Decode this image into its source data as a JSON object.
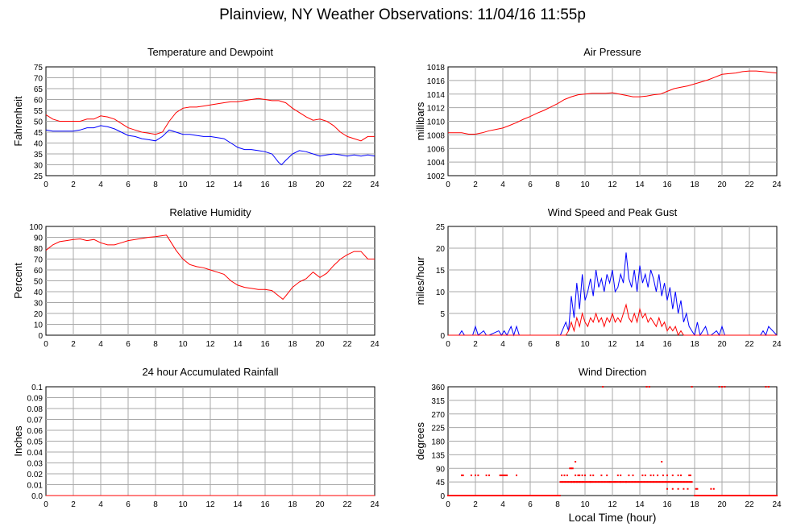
{
  "page": {
    "title": "Plainview, NY Weather Observations: 11/04/16 11:55p",
    "x_axis_title": "Local Time (hour)"
  },
  "chart_data": [
    {
      "id": "temp",
      "type": "line",
      "title": "Temperature and Dewpoint",
      "xlabel": "",
      "ylabel": "Fahrenheit",
      "xlim": [
        0,
        24
      ],
      "ylim": [
        25,
        75
      ],
      "xticks": [
        0,
        2,
        4,
        6,
        8,
        10,
        12,
        14,
        16,
        18,
        20,
        22,
        24
      ],
      "yticks": [
        25,
        30,
        35,
        40,
        45,
        50,
        55,
        60,
        65,
        70,
        75
      ],
      "ytick_labels": [
        "25",
        "30",
        "35",
        "40",
        "45",
        "50",
        "55",
        "60",
        "65",
        "70",
        "75"
      ],
      "grid": true,
      "series": [
        {
          "color": "#ff0000",
          "x": [
            0,
            0.5,
            1,
            1.5,
            2,
            2.5,
            3,
            3.5,
            4,
            4.5,
            5,
            5.5,
            6,
            6.5,
            7,
            7.5,
            8,
            8.5,
            9,
            9.5,
            10,
            10.5,
            11,
            11.5,
            12,
            12.5,
            13,
            13.5,
            14,
            14.5,
            15,
            15.5,
            16,
            16.5,
            17,
            17.5,
            18,
            18.5,
            19,
            19.5,
            20,
            20.5,
            21,
            21.5,
            22,
            22.5,
            23,
            23.5,
            24
          ],
          "y": [
            53,
            51,
            50,
            50,
            50,
            50,
            51,
            51,
            52.5,
            52,
            51,
            49,
            47,
            46,
            45,
            44.5,
            44,
            45,
            50,
            54,
            56,
            56.5,
            56.5,
            57,
            57.5,
            58,
            58.5,
            59,
            59,
            59.5,
            60,
            60.5,
            60,
            59.5,
            59.5,
            58.5,
            56,
            54,
            52,
            50.5,
            51,
            50,
            48,
            45,
            43,
            42,
            41,
            43,
            43
          ]
        },
        {
          "color": "#0000ff",
          "x": [
            0,
            0.5,
            1,
            1.5,
            2,
            2.5,
            3,
            3.5,
            4,
            4.5,
            5,
            5.5,
            6,
            6.5,
            7,
            7.5,
            8,
            8.5,
            9,
            9.5,
            10,
            10.5,
            11,
            11.5,
            12,
            12.5,
            13,
            13.5,
            14,
            14.5,
            15,
            15.5,
            16,
            16.5,
            17,
            17.2,
            17.5,
            18,
            18.5,
            19,
            19.5,
            20,
            20.5,
            21,
            21.5,
            22,
            22.5,
            23,
            23.5,
            24
          ],
          "y": [
            46,
            45.5,
            45.5,
            45.5,
            45.5,
            46,
            47,
            47,
            48,
            47.5,
            46.5,
            45,
            43.5,
            43,
            42,
            41.5,
            41,
            43,
            46,
            45,
            44,
            44,
            43.5,
            43,
            43,
            42.5,
            42,
            40,
            38,
            37,
            37,
            36.5,
            36,
            35,
            31,
            30,
            32,
            35,
            36.5,
            36,
            35,
            34,
            34.5,
            35,
            34.5,
            34,
            34.5,
            34,
            34.5,
            34
          ]
        }
      ]
    },
    {
      "id": "pressure",
      "type": "line",
      "title": "Air Pressure",
      "xlabel": "",
      "ylabel": "millibars",
      "xlim": [
        0,
        24
      ],
      "ylim": [
        1002,
        1018
      ],
      "xticks": [
        0,
        2,
        4,
        6,
        8,
        10,
        12,
        14,
        16,
        18,
        20,
        22,
        24
      ],
      "yticks": [
        1002,
        1004,
        1006,
        1008,
        1010,
        1012,
        1014,
        1016,
        1018
      ],
      "ytick_labels": [
        "1002",
        "1004",
        "1006",
        "1008",
        "1010",
        "1012",
        "1014",
        "1016",
        "1018"
      ],
      "grid": true,
      "series": [
        {
          "color": "#ff0000",
          "x": [
            0,
            0.5,
            1,
            1.5,
            2,
            2.5,
            3,
            3.5,
            4,
            4.5,
            5,
            5.5,
            6,
            6.5,
            7,
            7.5,
            8,
            8.5,
            9,
            9.5,
            10,
            10.5,
            11,
            11.5,
            12,
            12.5,
            13,
            13.5,
            14,
            14.5,
            15,
            15.5,
            16,
            16.5,
            17,
            17.5,
            18,
            18.5,
            19,
            19.5,
            20,
            20.5,
            21,
            21.5,
            22,
            22.5,
            23,
            23.5,
            24
          ],
          "y": [
            1008.3,
            1008.3,
            1008.3,
            1008.1,
            1008.1,
            1008.3,
            1008.6,
            1008.8,
            1009.0,
            1009.4,
            1009.8,
            1010.3,
            1010.7,
            1011.2,
            1011.6,
            1012.1,
            1012.6,
            1013.2,
            1013.6,
            1013.9,
            1014.0,
            1014.1,
            1014.1,
            1014.1,
            1014.2,
            1014.0,
            1013.8,
            1013.6,
            1013.6,
            1013.7,
            1013.9,
            1014.0,
            1014.4,
            1014.8,
            1015.0,
            1015.2,
            1015.5,
            1015.8,
            1016.1,
            1016.5,
            1016.9,
            1017.0,
            1017.1,
            1017.3,
            1017.4,
            1017.4,
            1017.3,
            1017.2,
            1017.1
          ]
        }
      ]
    },
    {
      "id": "humidity",
      "type": "line",
      "title": "Relative Humidity",
      "xlabel": "",
      "ylabel": "Percent",
      "xlim": [
        0,
        24
      ],
      "ylim": [
        0,
        100
      ],
      "xticks": [
        0,
        2,
        4,
        6,
        8,
        10,
        12,
        14,
        16,
        18,
        20,
        22,
        24
      ],
      "yticks": [
        0,
        10,
        20,
        30,
        40,
        50,
        60,
        70,
        80,
        90,
        100
      ],
      "ytick_labels": [
        "0",
        "10",
        "20",
        "30",
        "40",
        "50",
        "60",
        "70",
        "80",
        "90",
        "100"
      ],
      "grid": true,
      "series": [
        {
          "color": "#ff0000",
          "x": [
            0,
            0.5,
            1,
            1.5,
            2,
            2.5,
            3,
            3.5,
            4,
            4.5,
            5,
            5.5,
            6,
            6.5,
            7,
            7.5,
            8,
            8.5,
            8.8,
            9,
            9.5,
            10,
            10.5,
            11,
            11.5,
            12,
            12.5,
            13,
            13.5,
            14,
            14.5,
            15,
            15.5,
            16,
            16.5,
            17,
            17.3,
            17.5,
            18,
            18.5,
            19,
            19.5,
            20,
            20.5,
            21,
            21.5,
            22,
            22.5,
            23,
            23.5,
            24
          ],
          "y": [
            78,
            83,
            86,
            87,
            88,
            88.5,
            87,
            88,
            85,
            83,
            83,
            85,
            87,
            88,
            89,
            90,
            90.5,
            91.5,
            92,
            88,
            78,
            70,
            65,
            63,
            62,
            60,
            58,
            56,
            50,
            46,
            44,
            43,
            42,
            42,
            41,
            36,
            33,
            36,
            44,
            49,
            52,
            58,
            53,
            57,
            64,
            70,
            74,
            77,
            77,
            70,
            70
          ]
        }
      ]
    },
    {
      "id": "wind",
      "type": "line",
      "title": "Wind Speed and Peak Gust",
      "xlabel": "",
      "ylabel": "miles/hour",
      "xlim": [
        0,
        24
      ],
      "ylim": [
        0,
        25
      ],
      "xticks": [
        0,
        2,
        4,
        6,
        8,
        10,
        12,
        14,
        16,
        18,
        20,
        22,
        24
      ],
      "yticks": [
        0,
        5,
        10,
        15,
        20,
        25
      ],
      "ytick_labels": [
        "0",
        "5",
        "10",
        "15",
        "20",
        "25"
      ],
      "grid": true,
      "series": [
        {
          "color": "#0000ff",
          "x": [
            0,
            0.8,
            1,
            1.2,
            1.8,
            2,
            2.2,
            2.6,
            2.8,
            3,
            3.7,
            3.9,
            4.1,
            4.3,
            4.6,
            4.8,
            5.0,
            5.2,
            8.2,
            8.6,
            8.8,
            9.0,
            9.2,
            9.4,
            9.6,
            9.8,
            10.0,
            10.2,
            10.4,
            10.6,
            10.8,
            11.0,
            11.2,
            11.4,
            11.6,
            11.8,
            12.0,
            12.2,
            12.4,
            12.6,
            12.8,
            13.0,
            13.2,
            13.4,
            13.6,
            13.8,
            14.0,
            14.2,
            14.4,
            14.6,
            14.8,
            15.0,
            15.2,
            15.4,
            15.6,
            15.8,
            16.0,
            16.2,
            16.4,
            16.6,
            16.8,
            17.0,
            17.2,
            17.4,
            17.6,
            17.8,
            18.0,
            18.2,
            18.4,
            18.8,
            19.0,
            19.2,
            19.6,
            19.8,
            20.0,
            20.2,
            22.8,
            23.0,
            23.2,
            23.4,
            24
          ],
          "y": [
            0,
            0,
            1,
            0,
            0,
            2,
            0,
            1,
            0,
            0,
            1,
            0,
            1,
            0,
            2,
            0,
            2,
            0,
            0,
            3,
            1,
            9,
            4,
            12,
            6,
            14,
            8,
            10,
            13,
            9,
            15,
            11,
            13,
            10,
            14,
            12,
            15,
            10,
            11,
            14,
            12,
            19,
            13,
            11,
            15,
            10,
            16,
            12,
            14,
            11,
            15,
            13,
            10,
            14,
            9,
            12,
            8,
            11,
            6,
            10,
            5,
            8,
            3,
            5,
            2,
            1,
            0,
            3,
            0,
            2,
            0,
            0,
            1,
            0,
            2,
            0,
            0,
            1,
            0,
            2,
            0
          ]
        },
        {
          "color": "#ff0000",
          "x": [
            0,
            8.6,
            8.8,
            9.0,
            9.2,
            9.4,
            9.6,
            9.8,
            10.0,
            10.2,
            10.4,
            10.6,
            10.8,
            11.0,
            11.2,
            11.4,
            11.6,
            11.8,
            12.0,
            12.2,
            12.4,
            12.6,
            12.8,
            13.0,
            13.2,
            13.4,
            13.6,
            13.8,
            14.0,
            14.2,
            14.4,
            14.6,
            14.8,
            15.0,
            15.2,
            15.4,
            15.6,
            15.8,
            16.0,
            16.2,
            16.4,
            16.6,
            16.8,
            17.0,
            17.2,
            17.4,
            24
          ],
          "y": [
            0,
            0,
            1,
            3,
            1,
            4,
            2,
            5,
            3,
            2,
            4,
            3,
            5,
            3,
            4,
            2,
            4,
            3,
            5,
            3,
            4,
            3,
            5,
            7,
            4,
            3,
            5,
            3,
            6,
            4,
            5,
            3,
            4,
            3,
            2,
            4,
            2,
            3,
            1,
            2,
            1,
            2,
            0,
            1,
            0,
            0,
            0
          ]
        }
      ]
    },
    {
      "id": "rain",
      "type": "line",
      "title": "24 hour Accumulated Rainfall",
      "xlabel": "",
      "ylabel": "Inches",
      "xlim": [
        0,
        24
      ],
      "ylim": [
        0,
        0.1
      ],
      "xticks": [
        0,
        2,
        4,
        6,
        8,
        10,
        12,
        14,
        16,
        18,
        20,
        22,
        24
      ],
      "yticks": [
        0,
        0.01,
        0.02,
        0.03,
        0.04,
        0.05,
        0.06,
        0.07,
        0.08,
        0.09,
        0.1
      ],
      "ytick_labels": [
        "0.0",
        "0.01",
        "0.02",
        "0.03",
        "0.04",
        "0.05",
        "0.06",
        "0.07",
        "0.08",
        "0.09",
        "0.1"
      ],
      "grid": true,
      "series": [
        {
          "color": "#ff0000",
          "x": [
            0,
            24
          ],
          "y": [
            0,
            0
          ]
        }
      ]
    },
    {
      "id": "direction",
      "type": "scatter",
      "title": "Wind Direction",
      "xlabel": "Local Time (hour)",
      "ylabel": "degrees",
      "xlim": [
        0,
        24
      ],
      "ylim": [
        0,
        360
      ],
      "xticks": [
        0,
        2,
        4,
        6,
        8,
        10,
        12,
        14,
        16,
        18,
        20,
        22,
        24
      ],
      "yticks": [
        0,
        45,
        90,
        135,
        180,
        225,
        270,
        315,
        360
      ],
      "ytick_labels": [
        "0",
        "45",
        "90",
        "135",
        "180",
        "225",
        "270",
        "315",
        "360"
      ],
      "grid": true,
      "series": [
        {
          "color": "#ff0000",
          "point_size": 2,
          "x": [
            1,
            1.1,
            1.7,
            2.0,
            2.2,
            2.8,
            3.0,
            3.8,
            3.9,
            4.0,
            4.1,
            4.2,
            4.3,
            5.0,
            8.3,
            8.5,
            8.7,
            8.9,
            9.0,
            9.1,
            9.3,
            9.5,
            9.6,
            9.8,
            10.0,
            9.2,
            9.6,
            9.8,
            10.4,
            10.6,
            11.2,
            11.6,
            12.4,
            12.6,
            13.2,
            13.5,
            14.2,
            14.4,
            14.8,
            15.0,
            15.3,
            15.7,
            16.0,
            16.4,
            16.8,
            17.0,
            17.6,
            17.7,
            17.8,
            9.3,
            9.4,
            9.0,
            10.4,
            11.8,
            12.2,
            12.6,
            13.0,
            15.6,
            16.0,
            16.4,
            16.8,
            17.2,
            17.5,
            18.1,
            18.2,
            19.2,
            19.4,
            11.3,
            14.5,
            14.7,
            19.8,
            20.0,
            20.2,
            23.2,
            23.4
          ],
          "y": [
            67,
            67,
            67,
            67,
            67,
            67,
            67,
            67,
            67,
            67,
            67,
            67,
            67,
            67,
            67,
            67,
            67,
            90,
            90,
            90,
            67,
            67,
            67,
            67,
            67,
            45,
            45,
            45,
            67,
            67,
            67,
            67,
            67,
            67,
            67,
            67,
            67,
            67,
            67,
            67,
            67,
            67,
            67,
            67,
            67,
            67,
            67,
            67,
            360,
            112,
            45,
            45,
            45,
            45,
            45,
            45,
            45,
            112,
            22,
            22,
            22,
            22,
            22,
            22,
            22,
            22,
            22,
            360,
            360,
            360,
            360,
            360,
            360,
            360,
            360
          ]
        },
        {
          "color": "#ff0000",
          "point_size": 2,
          "baseline": true,
          "x": [
            0,
            8.2
          ],
          "y": [
            0,
            0
          ]
        },
        {
          "color": "#ff0000",
          "point_size": 2,
          "baseline": true,
          "x": [
            8.2,
            17.8
          ],
          "y": [
            45,
            45
          ]
        },
        {
          "color": "#ff0000",
          "point_size": 2,
          "baseline": true,
          "x": [
            18.0,
            24
          ],
          "y": [
            0,
            0
          ]
        }
      ]
    }
  ]
}
